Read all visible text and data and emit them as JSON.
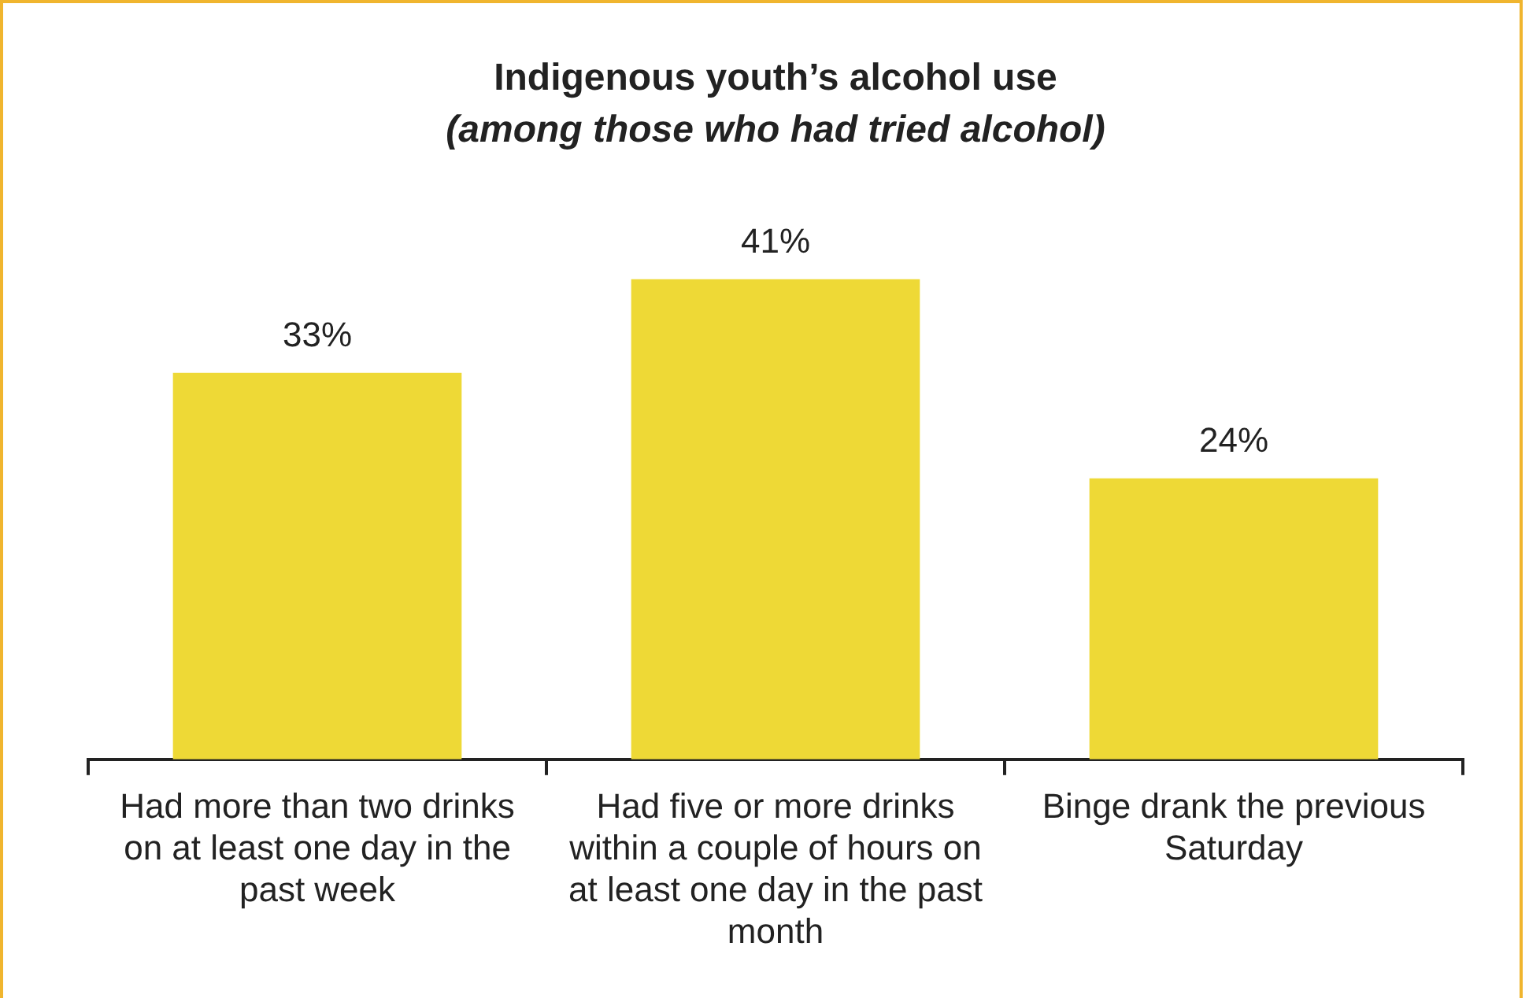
{
  "chart_data": {
    "type": "bar",
    "title": "Indigenous youth’s alcohol use",
    "subtitle": "(among those who had tried alcohol)",
    "categories": [
      "Had more than two drinks on at least one day in the past week",
      "Had five or more drinks within a couple of hours on at least one day in the past month",
      "Binge drank the previous Saturday"
    ],
    "values": [
      33,
      41,
      24
    ],
    "color": "#eed936",
    "value_labels": [
      "33%",
      "41%",
      "24%"
    ],
    "grid": false,
    "legend": false,
    "tick_labels": "x"
  }
}
